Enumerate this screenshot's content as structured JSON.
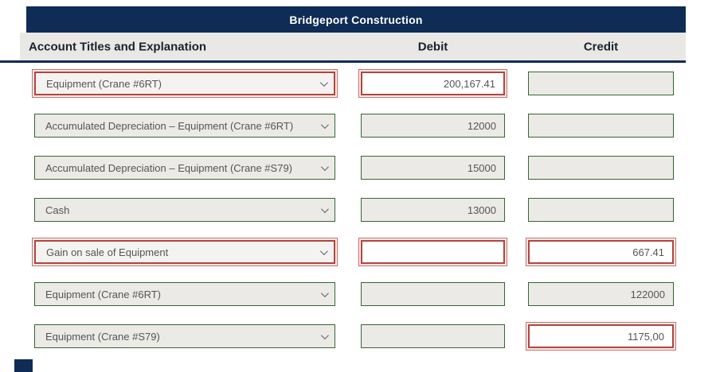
{
  "header": {
    "title": "Bridgeport Construction",
    "columns": {
      "account": "Account Titles and Explanation",
      "debit": "Debit",
      "credit": "Credit"
    }
  },
  "rows": [
    {
      "account": "Equipment (Crane #6RT)",
      "debit": "200,167.41",
      "credit": "",
      "account_error": true,
      "debit_error": true,
      "credit_error": false
    },
    {
      "account": "Accumulated Depreciation – Equipment (Crane #6RT)",
      "debit": "12000",
      "credit": "",
      "account_error": false,
      "debit_error": false,
      "credit_error": false
    },
    {
      "account": "Accumulated Depreciation – Equipment (Crane #S79)",
      "debit": "15000",
      "credit": "",
      "account_error": false,
      "debit_error": false,
      "credit_error": false
    },
    {
      "account": "Cash",
      "debit": "13000",
      "credit": "",
      "account_error": false,
      "debit_error": false,
      "credit_error": false
    },
    {
      "account": "Gain on sale of Equipment",
      "debit": "",
      "credit": "667.41",
      "account_error": true,
      "debit_error": true,
      "credit_error": true
    },
    {
      "account": "Equipment (Crane #6RT)",
      "debit": "",
      "credit": "122000",
      "account_error": false,
      "debit_error": false,
      "credit_error": false
    },
    {
      "account": "Equipment (Crane #S79)",
      "debit": "",
      "credit": "1175,00",
      "account_error": false,
      "debit_error": false,
      "credit_error": true
    }
  ],
  "colors": {
    "header_navy": "#0e2c55",
    "header_row_bg": "#e9e8e5",
    "field_border_green": "#336733",
    "field_bg_gray": "#eceae7",
    "error_red": "#b5433b",
    "text": "#565553"
  },
  "icons": {
    "dropdown": "chevron-down"
  }
}
